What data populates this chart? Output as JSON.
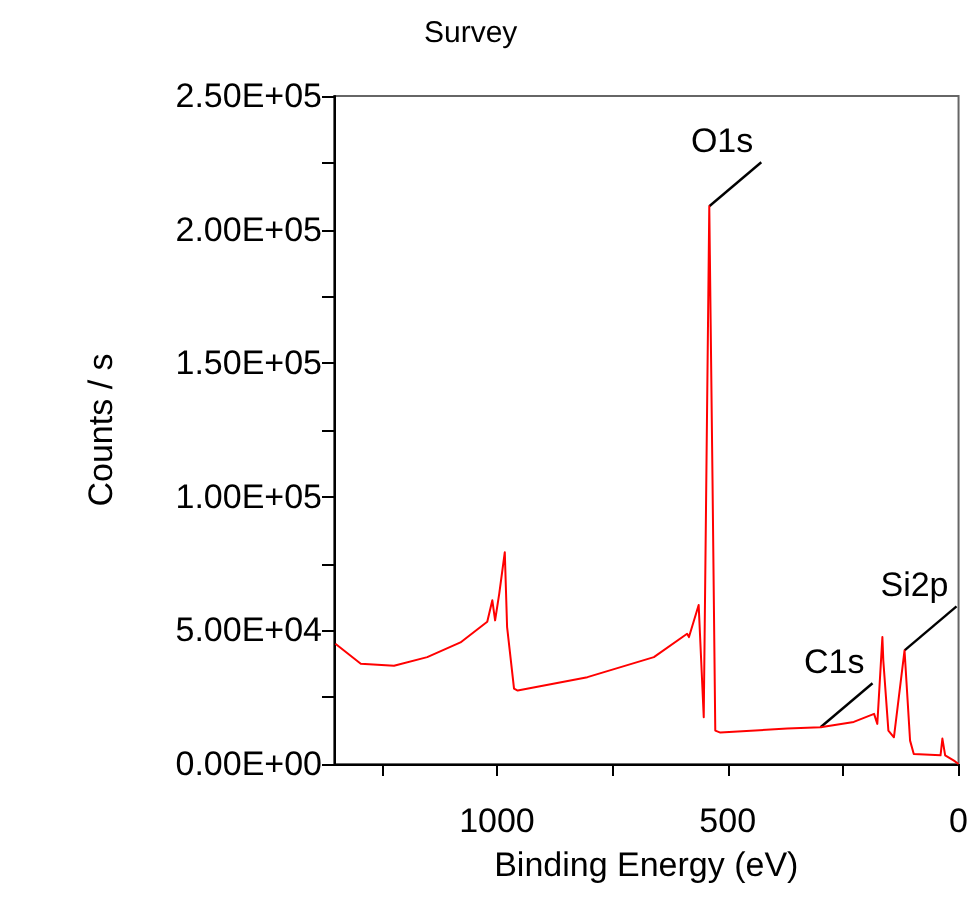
{
  "chart_data": {
    "type": "line",
    "title": "Survey",
    "xlabel": "Binding Energy (eV)",
    "ylabel": "Counts / s",
    "xlim": [
      1353,
      0
    ],
    "xticks": [
      {
        "value": 1250,
        "label": null
      },
      1000,
      {
        "value": 750,
        "label": null
      },
      500,
      {
        "value": 250,
        "label": null
      },
      0
    ],
    "ylim": [
      0,
      250000
    ],
    "yticks": [
      {
        "value": 0,
        "label": "0.00E+00"
      },
      {
        "value": 25000,
        "label": null
      },
      {
        "value": 50000,
        "label": "5.00E+04"
      },
      {
        "value": 75000,
        "label": null
      },
      {
        "value": 100000,
        "label": "1.00E+05"
      },
      {
        "value": 125000,
        "label": null
      },
      {
        "value": 150000,
        "label": "1.50E+05"
      },
      {
        "value": 175000,
        "label": null
      },
      {
        "value": 200000,
        "label": "2.00E+05"
      },
      {
        "value": 225000,
        "label": null
      },
      {
        "value": 250000,
        "label": "2.50E+05"
      }
    ],
    "grid": false,
    "series": [
      {
        "color": "#ff0000",
        "x": [
          1350,
          1295,
          1223,
          1151,
          1079,
          1021,
          1010,
          1004,
          995,
          983,
          978,
          963,
          955,
          804,
          660,
          588,
          584,
          563,
          552,
          540,
          533,
          527,
          516,
          371,
          299,
          227,
          183,
          176,
          165,
          163,
          152,
          140,
          117,
          105,
          97,
          39,
          35,
          29,
          10,
          0
        ],
        "values": [
          45000,
          37500,
          36750,
          40000,
          45500,
          53250,
          61250,
          53750,
          63750,
          79250,
          51250,
          28250,
          27500,
          32500,
          40000,
          48750,
          47500,
          59500,
          17500,
          208750,
          106250,
          12500,
          11750,
          13250,
          13750,
          15750,
          18750,
          15000,
          47500,
          38750,
          12500,
          10000,
          42500,
          8750,
          3750,
          3250,
          9500,
          3250,
          1250,
          0
        ]
      }
    ],
    "annotations": [
      {
        "text": "O1s",
        "x": 540,
        "y": 208750
      },
      {
        "text": "C1s",
        "x": 299,
        "y": 13750
      },
      {
        "text": "Si2p",
        "x": 117,
        "y": 42500
      }
    ]
  }
}
